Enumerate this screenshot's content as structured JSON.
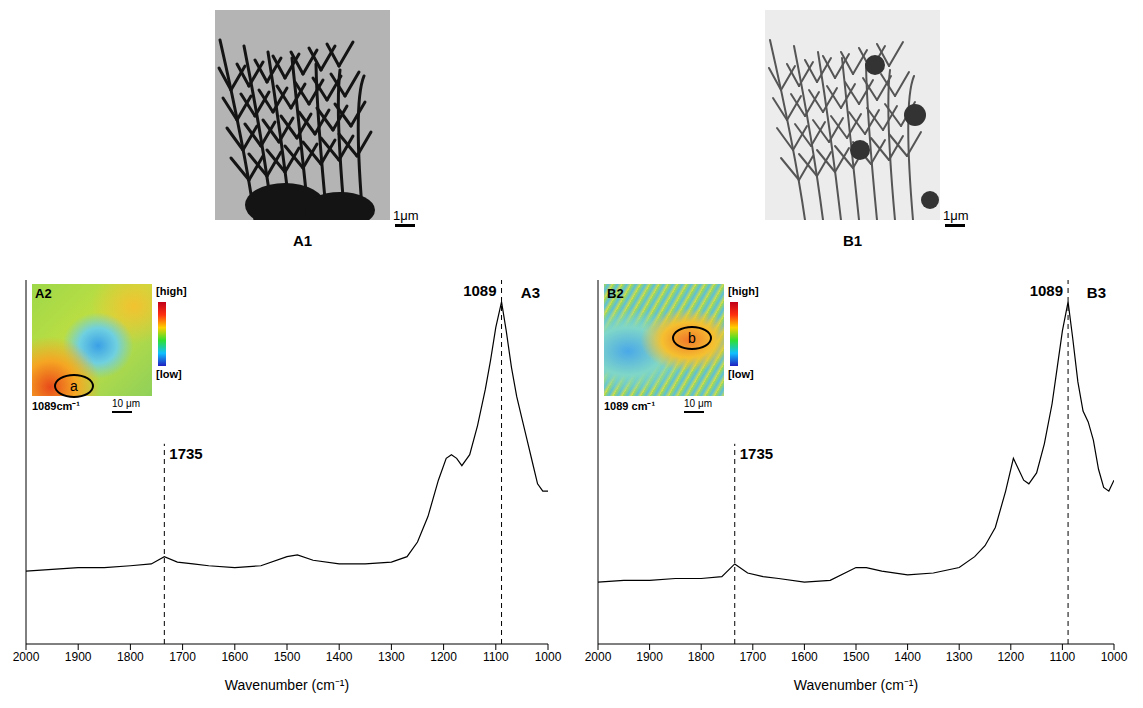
{
  "micrographs": [
    {
      "label": "A1",
      "scale_bar": "1μm"
    },
    {
      "label": "B1",
      "scale_bar": "1μm"
    }
  ],
  "insets": [
    {
      "label": "A2",
      "map_label": "1089cm⁻¹",
      "scale_bar": "10 μm",
      "region": "a",
      "colorbar": [
        "[high]",
        "[low]"
      ]
    },
    {
      "label": "B2",
      "map_label": "1089 cm⁻¹",
      "scale_bar": "10 μm",
      "region": "b",
      "colorbar": [
        "[high]",
        "[low]"
      ]
    }
  ],
  "chart_data": [
    {
      "type": "line",
      "title": "A3",
      "x_label": "Wavenumber (cm⁻¹)",
      "x": [
        2000,
        1950,
        1900,
        1850,
        1800,
        1760,
        1735,
        1710,
        1680,
        1650,
        1600,
        1550,
        1500,
        1480,
        1450,
        1400,
        1350,
        1300,
        1270,
        1250,
        1230,
        1210,
        1195,
        1185,
        1175,
        1165,
        1150,
        1135,
        1120,
        1110,
        1100,
        1089,
        1080,
        1070,
        1060,
        1050,
        1040,
        1030,
        1020,
        1010,
        1000
      ],
      "values": [
        20,
        20.5,
        21,
        21,
        21.5,
        22,
        24,
        22.5,
        22,
        21.5,
        21,
        21.5,
        24,
        24.5,
        23,
        22,
        22,
        22.5,
        24,
        28,
        35,
        45,
        51,
        52,
        51,
        49,
        52,
        60,
        70,
        78,
        87,
        94,
        86,
        76,
        68,
        62,
        56,
        50,
        44,
        42,
        42
      ],
      "color": "#000000",
      "xlim": [
        1000,
        2000
      ],
      "xticks": [
        2000,
        1900,
        1800,
        1700,
        1600,
        1500,
        1400,
        1300,
        1200,
        1100,
        1000
      ],
      "ylim": [
        0,
        100
      ],
      "tick_labels": "x",
      "annotations": [
        {
          "x": 1735,
          "label": "1735"
        },
        {
          "x": 1089,
          "label": "1089"
        }
      ]
    },
    {
      "type": "line",
      "title": "B3",
      "x_label": "Wavenumber (cm⁻¹)",
      "x": [
        2000,
        1950,
        1900,
        1850,
        1800,
        1760,
        1735,
        1710,
        1680,
        1650,
        1600,
        1550,
        1500,
        1480,
        1450,
        1400,
        1350,
        1300,
        1270,
        1250,
        1230,
        1210,
        1195,
        1185,
        1175,
        1165,
        1150,
        1135,
        1120,
        1110,
        1100,
        1089,
        1080,
        1070,
        1060,
        1050,
        1040,
        1030,
        1020,
        1010,
        1000
      ],
      "values": [
        17,
        17.5,
        17.5,
        18,
        18,
        18.5,
        22,
        19.5,
        18.5,
        18,
        17,
        17.5,
        21,
        21,
        20,
        19,
        19.5,
        21,
        24,
        27,
        32,
        42,
        51,
        48,
        45,
        44,
        47,
        55,
        66,
        76,
        86,
        94,
        84,
        72,
        64,
        61,
        56,
        48,
        43,
        42,
        45
      ],
      "color": "#000000",
      "xlim": [
        1000,
        2000
      ],
      "xticks": [
        2000,
        1900,
        1800,
        1700,
        1600,
        1500,
        1400,
        1300,
        1200,
        1100,
        1000
      ],
      "ylim": [
        0,
        100
      ],
      "tick_labels": "x",
      "annotations": [
        {
          "x": 1735,
          "label": "1735"
        },
        {
          "x": 1089,
          "label": "1089"
        }
      ]
    }
  ]
}
